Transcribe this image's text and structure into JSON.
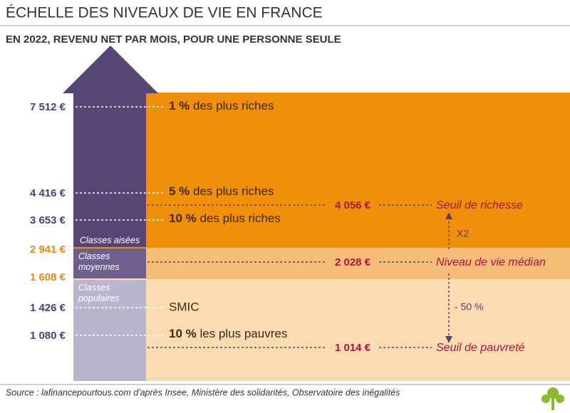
{
  "header": {
    "title": "ÉCHELLE DES NIVEAUX DE VIE EN FRANCE",
    "subtitle": "EN 2022, REVENU NET PAR MOIS, POUR UNE PERSONNE SEULE"
  },
  "levels": [
    {
      "amount": "7 512 €",
      "bold": "1 %",
      "text": " des plus riches"
    },
    {
      "amount": "4 416 €",
      "bold": "5 %",
      "text": " des plus riches"
    },
    {
      "amount": "3 653 €",
      "bold": "10 %",
      "text": " des plus riches"
    },
    {
      "amount": "1 426 €",
      "text": "SMIC"
    },
    {
      "amount": "1 080 €",
      "bold": "10 %",
      "text": " les plus pauvres"
    }
  ],
  "class_bounds": [
    "2 941 €",
    "1 608 €"
  ],
  "classes": [
    "Classes aisées",
    "Classes moyennes",
    "Classes populaires"
  ],
  "thresholds": [
    {
      "amount": "4 056 €",
      "label": "Seuil de richesse"
    },
    {
      "amount": "2 028 €",
      "label": "Niveau de vie médian"
    },
    {
      "amount": "1 014 €",
      "label": "Seuil de pauvreté"
    }
  ],
  "ratios": [
    "X2",
    "- 50 %"
  ],
  "footer": {
    "source": "Source : lafinancepourtous.com d'après Insee, Ministère des solidarités, Observatoire des inégalités"
  }
}
